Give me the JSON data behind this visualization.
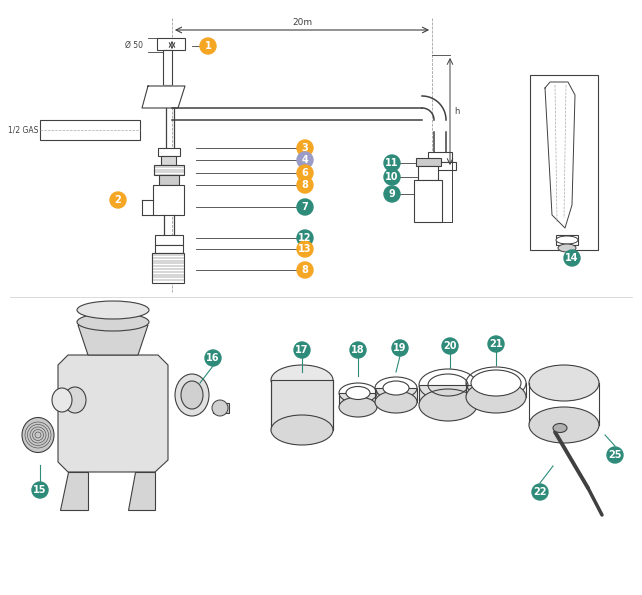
{
  "bg_color": "#ffffff",
  "line_color": "#404040",
  "orange_color": "#F5A623",
  "teal_color": "#2E8B7A",
  "purple_color": "#9B9BC8",
  "gray_fill": "#e8e8e8",
  "dim_label_20m": "20m",
  "dim_label_d50": "Ø 50",
  "dim_label_half_gas": "1/2 GAS",
  "dim_label_h": "h"
}
